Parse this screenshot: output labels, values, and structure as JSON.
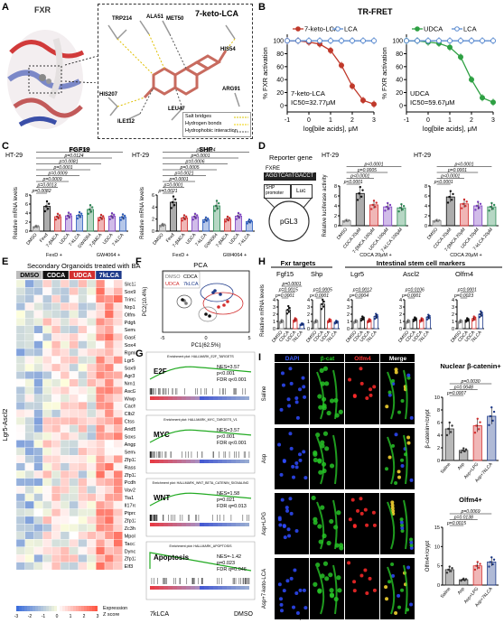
{
  "panels": {
    "A": "A",
    "B": "B",
    "C": "C",
    "D": "D",
    "E": "E",
    "F": "F",
    "G": "G",
    "H": "H",
    "I": "I"
  },
  "panelA": {
    "protein": "FXR",
    "ligand": "7-keto-LCA",
    "residues": [
      "TRP214",
      "ALA51",
      "MET50",
      "HIS54",
      "HIS207",
      "ARG91",
      "LEU47",
      "ILE112"
    ],
    "legend": [
      "Salt bridges",
      "Hydrogen bonds",
      "Hydrophobic interaction"
    ],
    "legend_colors": [
      "#d9c600",
      "#f0d000",
      "#555555"
    ]
  },
  "panelB": {
    "title": "TR-FRET",
    "ylabel": "% FXR activation",
    "xlabel": "log[bile acids], μM",
    "left": {
      "legend": [
        "7-keto-LCA",
        "LCA"
      ],
      "colors": [
        "#c0392b",
        "#5b8bd0"
      ],
      "note1": "7-keto-LCA",
      "note2": "IC50=32.77μM"
    },
    "right": {
      "legend": [
        "UDCA",
        "LCA"
      ],
      "colors": [
        "#2ea043",
        "#5b8bd0"
      ],
      "note1": "UDCA",
      "note2": "IC50=59.67μM"
    }
  },
  "chart_data": [
    {
      "type": "line",
      "title": "TR-FRET",
      "xlabel": "log[bile acids], μM",
      "ylabel": "% FXR activation",
      "xlim": [
        -1,
        3
      ],
      "ylim": [
        -10,
        110
      ],
      "x": [
        -1,
        -0.5,
        0,
        0.5,
        1,
        1.5,
        2,
        2.5,
        3
      ],
      "series": [
        {
          "name": "7-keto-LCA",
          "values": [
            100,
            100,
            98,
            95,
            85,
            62,
            30,
            8,
            2
          ]
        },
        {
          "name": "LCA",
          "values": [
            100,
            100,
            100,
            100,
            100,
            100,
            100,
            100,
            100
          ]
        }
      ]
    },
    {
      "type": "line",
      "title": "TR-FRET",
      "xlabel": "log[bile acids], μM",
      "ylabel": "% FXR activation",
      "xlim": [
        -1,
        3
      ],
      "ylim": [
        -10,
        110
      ],
      "x": [
        -1,
        -0.5,
        0,
        0.5,
        1,
        1.5,
        2,
        2.5,
        3
      ],
      "series": [
        {
          "name": "UDCA",
          "values": [
            100,
            100,
            98,
            96,
            90,
            75,
            40,
            12,
            5
          ]
        },
        {
          "name": "LCA",
          "values": [
            100,
            100,
            100,
            100,
            100,
            100,
            100,
            100,
            100
          ]
        }
      ]
    }
  ],
  "panelC": {
    "cell": "HT-29",
    "ylabel": "Relative mRNA levels",
    "fgf19": {
      "title": "FGF19",
      "pvals": [
        "p=0.0082",
        "p=0.0013",
        "p=0.0009",
        "p=0.0009",
        "p=0.0001",
        "p=0.0081",
        "p=0.0124",
        "p=0.0082"
      ],
      "cats": [
        "DMSO",
        "Fexd",
        "7-βMCA",
        "UDCA",
        "7-kLCA",
        "GW4064",
        "7-βMCA",
        "UDCA",
        "7-kLCA"
      ]
    },
    "shp": {
      "title": "SHP",
      "pvals": [
        "p=0.0021",
        "p=0.0001",
        "p=0.0001",
        "p=0.0021",
        "p=0.0005",
        "p=0.0006",
        "p=0.0001",
        "p=0.0014"
      ],
      "cats": [
        "DMSO",
        "Fexd",
        "7-βMCA",
        "UDCA",
        "7-kLCA",
        "GW4064",
        "7-βMCA",
        "UDCA",
        "7-kLCA"
      ]
    },
    "group1": "FexD +",
    "group2": "GW4064 +"
  },
  "panelD": {
    "title": "Reporter gene",
    "fxre": "FXRE",
    "seq": "AGGTCAnTGACCT",
    "shp": "SHP promoter",
    "luc": "Luc",
    "plasmid": "pGL3",
    "cell": "HT-29",
    "ylabel": "Relative luciferase activity",
    "left_cats": [
      "DMSO",
      "CDCA 20μM",
      "7-βMCA 100μM",
      "UDCA 100μM",
      "7-kLCA 100μM"
    ],
    "right_cats": [
      "DMSO",
      "CDCA 20μM",
      "7-βMCA 20μM",
      "UDCA 20μM",
      "7-kLCA 20μM"
    ],
    "left_group": "CDCA 20μM +",
    "right_group": "CDCA 20μM +",
    "pvals_left": [
      "p<0.0001",
      "p<0.0001",
      "p=0.0005",
      "p<0.0001"
    ],
    "pvals_right": [
      "p<0.0001",
      "p<0.0001",
      "p=0.0001",
      "p<0.0001"
    ]
  },
  "panelE": {
    "title": "Secondary Organoids treated with BA",
    "groups": [
      "DMSO",
      "CDCA",
      "UDCA",
      "7kLCA"
    ],
    "group_colors": [
      "#bdbdbd",
      "#111111",
      "#d32f2f",
      "#1e3a8a"
    ],
    "side_label": "Lgr5-Ascl2",
    "genes": [
      "Slc12a2",
      "Sox9",
      "Trim24",
      "Nrp1",
      "Olfm4",
      "Pdgfa",
      "Sema7a",
      "Gas6",
      "Sox4",
      "Rgmb",
      "Lgr5",
      "Sox9",
      "Agr3",
      "Nrn1",
      "Ascl2",
      "Wwp1",
      "Cachd1",
      "Clb2",
      "Ctss",
      "Arid5b",
      "Soxs2",
      "Angpt2",
      "Sema3c",
      "Zfp120",
      "Rassf4",
      "Zfp12",
      "Pcdh8",
      "Vav2",
      "Tia1",
      "Il17rd",
      "Ptprd",
      "Zfp125",
      "Zc3h6",
      "Mpol1",
      "Tacc1",
      "Dync2h1",
      "Zfp128",
      "Elf3"
    ],
    "legend_title": "Expression Z score",
    "legend_ticks": [
      "-3",
      "-2",
      "-1",
      "0",
      "1",
      "2",
      "3"
    ]
  },
  "panelF": {
    "title": "PCA",
    "legend": [
      "DMSO",
      "CDCA",
      "UDCA",
      "7kLCA"
    ],
    "colors": [
      "#777777",
      "#111111",
      "#d32f2f",
      "#1e3a8a"
    ],
    "xlabel": "PC1(62.5%)",
    "ylabel": "PC2(10.4%)"
  },
  "panelG": {
    "plots": [
      {
        "title": "Enrichment plot: HALLMARK_E2F_TARGETS",
        "name": "E2F",
        "nes": "NES=3.57",
        "p": "p<0.001",
        "fdr": "FDR q<0.001"
      },
      {
        "title": "Enrichment plot: HALLMARK_MYC_TARGETS_V1",
        "name": "MYC",
        "nes": "NES=3.57",
        "p": "p<0.001",
        "fdr": "FDR q<0.001"
      },
      {
        "title": "Enrichment plot: HALLMARK_WNT_BETA_CATENIN_SIGNALING",
        "name": "WNT",
        "nes": "NES=1.58",
        "p": "p=0.021",
        "fdr": "FDR q=0.013"
      },
      {
        "title": "Enrichment plot: HALLMARK_APOPTOSIS",
        "name": "Apoptosis",
        "nes": "NES=-1.42",
        "p": "p=0.023",
        "fdr": "FDR q=0.046"
      }
    ],
    "left": "7kLCA",
    "right": "DMSO"
  },
  "panelH": {
    "header1": "Fxr targets",
    "header2": "Intestinal stem cell markers",
    "ylabel": "Relative mRNA levels",
    "genes": [
      "Fgf15",
      "Shp",
      "Lgr5",
      "Ascl2",
      "Olfm4"
    ],
    "cats": [
      "DMSO",
      "CDCA",
      "UDCA",
      "7kLCA"
    ],
    "pvals": [
      [
        "p=0.0001",
        "p=0.0015",
        "p=0.0001"
      ],
      [
        "p<0.0001",
        "p=0.0005"
      ],
      [
        "p=0.0004",
        "p=0.0012"
      ],
      [
        "p=0.0001",
        "p=0.0106"
      ],
      [
        "p=0.0023",
        "p=0.0001"
      ]
    ]
  },
  "panelI": {
    "channels": [
      "DAPI",
      "β-cat",
      "Olfm4",
      "Merge"
    ],
    "channel_colors": [
      "#3b5bff",
      "#22cc22",
      "#ff3333",
      "#ffffff"
    ],
    "rows": [
      "Saline",
      "Asp",
      "Asp+LPG",
      "Asp+7-keto-LCA"
    ],
    "scale": "Scale bar 10μm",
    "chart1": {
      "title": "Nuclear β-catenin+",
      "ylabel": "β-catenin+/crypt",
      "pvals": [
        "p=0.0007",
        "p=0.0048",
        "p=0.0030"
      ],
      "cats": [
        "Saline",
        "Asp",
        "Asp+LPG",
        "Asp+7kLCA"
      ]
    },
    "chart2": {
      "title": "Olfm4+",
      "ylabel": "Olfm4+/crypt",
      "pvals": [
        "p=0.0015",
        "p=0.0138",
        "p=0.0069"
      ],
      "cats": [
        "Saline",
        "Asp",
        "Asp+LPG",
        "Asp+7kLCA"
      ]
    }
  }
}
